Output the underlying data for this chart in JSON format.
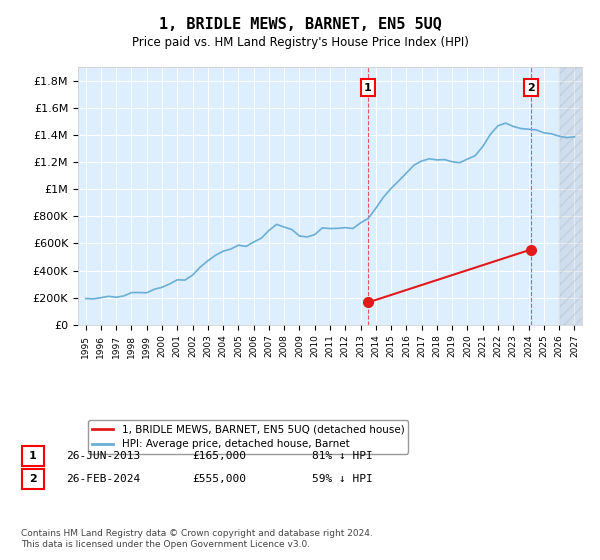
{
  "title": "1, BRIDLE MEWS, BARNET, EN5 5UQ",
  "subtitle": "Price paid vs. HM Land Registry's House Price Index (HPI)",
  "hpi_color": "#6baed6",
  "price_color": "#e31a1c",
  "marker1_date_idx": 18.5,
  "marker2_date_idx": 29.1,
  "transaction1": {
    "label": "1",
    "date": "26-JUN-2013",
    "price": "£165,000",
    "hpi": "81% ↓ HPI"
  },
  "transaction2": {
    "label": "2",
    "date": "26-FEB-2024",
    "price": "£555,000",
    "hpi": "59% ↓ HPI"
  },
  "legend_line1": "1, BRIDLE MEWS, BARNET, EN5 5UQ (detached house)",
  "legend_line2": "HPI: Average price, detached house, Barnet",
  "footer": "Contains HM Land Registry data © Crown copyright and database right 2024.\nThis data is licensed under the Open Government Licence v3.0.",
  "ylim": [
    0,
    1900000
  ],
  "yticks": [
    0,
    200000,
    400000,
    600000,
    800000,
    1000000,
    1200000,
    1400000,
    1600000,
    1800000
  ],
  "ytick_labels": [
    "£0",
    "£200K",
    "£400K",
    "£600K",
    "£800K",
    "£1M",
    "£1.2M",
    "£1.4M",
    "£1.6M",
    "£1.8M"
  ],
  "background_color": "#ddeeff",
  "plot_bg": "#ddeeff"
}
